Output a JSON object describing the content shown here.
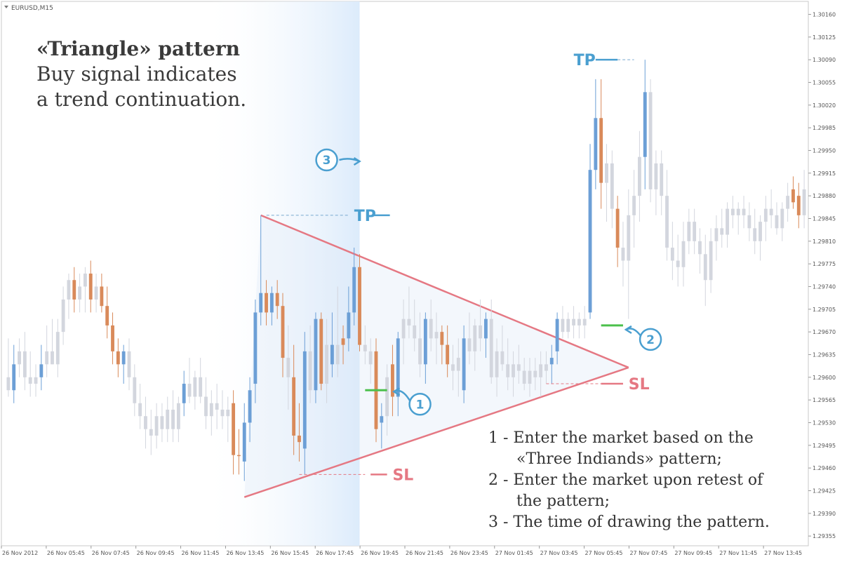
{
  "window": {
    "title": "EURUSD,M15"
  },
  "heading": {
    "title": "«Triangle» pattern",
    "line1": "Buy signal indicates",
    "line2": "a trend continuation."
  },
  "notes": [
    {
      "line": "1 - Enter the market based on the",
      "cont": "«Three Indiands» pattern;"
    },
    {
      "line": "2 - Enter the market upon retest of",
      "cont": "the pattern;"
    },
    {
      "line": "3 - The time of drawing the pattern.",
      "cont": ""
    }
  ],
  "annotations": {
    "tp_label": "TP",
    "sl_label": "SL",
    "marker1": "1",
    "marker2": "2",
    "marker3": "3",
    "tp1_price": 1.2985,
    "sl1_price": 1.2945,
    "tp2_price": 1.3009,
    "sl2_price": 1.2959,
    "entry1_price": 1.2958,
    "entry2_price": 1.2968
  },
  "colors": {
    "bull": "#6c9fd6",
    "bear": "#d98a5a",
    "neutral": "#d3d6de",
    "triangle": "#e57883",
    "annotation_blue": "#4a9fd0",
    "entry_green": "#4cc04c",
    "highlight": "#e3eefb"
  },
  "chart_data": {
    "type": "candlestick",
    "symbol": "EURUSD",
    "timeframe": "M15",
    "y_range": [
      1.2934,
      1.3018
    ],
    "y_ticks": [
      "1.30160",
      "1.30125",
      "1.30090",
      "1.30055",
      "1.30020",
      "1.29985",
      "1.29950",
      "1.29915",
      "1.29880",
      "1.29845",
      "1.29810",
      "1.29775",
      "1.29740",
      "1.29705",
      "1.29670",
      "1.29635",
      "1.29600",
      "1.29565",
      "1.29530",
      "1.29495",
      "1.29460",
      "1.29425",
      "1.29390",
      "1.29355"
    ],
    "x_ticks": [
      "26 Nov 2012",
      "26 Nov 05:45",
      "26 Nov 07:45",
      "26 Nov 09:45",
      "26 Nov 11:45",
      "26 Nov 13:45",
      "26 Nov 15:45",
      "26 Nov 17:45",
      "26 Nov 19:45",
      "26 Nov 21:45",
      "26 Nov 23:45",
      "27 Nov 01:45",
      "27 Nov 03:45",
      "27 Nov 05:45",
      "27 Nov 07:45",
      "27 Nov 09:45",
      "27 Nov 11:45",
      "27 Nov 13:45"
    ],
    "triangle": {
      "upper_start": {
        "bar": 46,
        "price": 1.2985
      },
      "lower_start": {
        "bar": 43,
        "price": 1.29415
      },
      "apex": {
        "bar": 113,
        "price": 1.29615
      }
    },
    "highlight_bars": [
      35,
      64
    ],
    "candles": [
      {
        "o": 1.296,
        "h": 1.2966,
        "l": 1.2957,
        "c": 1.2958,
        "k": "n"
      },
      {
        "o": 1.2958,
        "h": 1.2965,
        "l": 1.2956,
        "c": 1.2962,
        "k": "u"
      },
      {
        "o": 1.2962,
        "h": 1.2966,
        "l": 1.296,
        "c": 1.2964,
        "k": "n"
      },
      {
        "o": 1.2964,
        "h": 1.2967,
        "l": 1.2958,
        "c": 1.296,
        "k": "n"
      },
      {
        "o": 1.296,
        "h": 1.2964,
        "l": 1.2957,
        "c": 1.2959,
        "k": "n"
      },
      {
        "o": 1.2959,
        "h": 1.2962,
        "l": 1.2957,
        "c": 1.296,
        "k": "n"
      },
      {
        "o": 1.296,
        "h": 1.2965,
        "l": 1.2958,
        "c": 1.2962,
        "k": "u"
      },
      {
        "o": 1.2962,
        "h": 1.2968,
        "l": 1.296,
        "c": 1.2964,
        "k": "n"
      },
      {
        "o": 1.2964,
        "h": 1.2969,
        "l": 1.2962,
        "c": 1.2962,
        "k": "n"
      },
      {
        "o": 1.2962,
        "h": 1.2969,
        "l": 1.296,
        "c": 1.2967,
        "k": "n"
      },
      {
        "o": 1.2967,
        "h": 1.2974,
        "l": 1.2965,
        "c": 1.2972,
        "k": "n"
      },
      {
        "o": 1.2972,
        "h": 1.2976,
        "l": 1.2969,
        "c": 1.2975,
        "k": "n"
      },
      {
        "o": 1.2975,
        "h": 1.2977,
        "l": 1.297,
        "c": 1.2972,
        "k": "d"
      },
      {
        "o": 1.2972,
        "h": 1.2976,
        "l": 1.297,
        "c": 1.2974,
        "k": "n"
      },
      {
        "o": 1.2974,
        "h": 1.2977,
        "l": 1.297,
        "c": 1.2976,
        "k": "n"
      },
      {
        "o": 1.2976,
        "h": 1.2978,
        "l": 1.297,
        "c": 1.2972,
        "k": "d"
      },
      {
        "o": 1.2972,
        "h": 1.2976,
        "l": 1.297,
        "c": 1.2974,
        "k": "n"
      },
      {
        "o": 1.2974,
        "h": 1.2976,
        "l": 1.297,
        "c": 1.2971,
        "k": "d"
      },
      {
        "o": 1.2971,
        "h": 1.2974,
        "l": 1.2966,
        "c": 1.2968,
        "k": "d"
      },
      {
        "o": 1.2968,
        "h": 1.297,
        "l": 1.2962,
        "c": 1.2964,
        "k": "d"
      },
      {
        "o": 1.2964,
        "h": 1.2966,
        "l": 1.296,
        "c": 1.2962,
        "k": "d"
      },
      {
        "o": 1.2962,
        "h": 1.2965,
        "l": 1.2959,
        "c": 1.2964,
        "k": "u"
      },
      {
        "o": 1.2964,
        "h": 1.2966,
        "l": 1.2958,
        "c": 1.296,
        "k": "n"
      },
      {
        "o": 1.296,
        "h": 1.2962,
        "l": 1.2954,
        "c": 1.2956,
        "k": "n"
      },
      {
        "o": 1.2956,
        "h": 1.2959,
        "l": 1.2952,
        "c": 1.2954,
        "k": "n"
      },
      {
        "o": 1.2954,
        "h": 1.2957,
        "l": 1.2949,
        "c": 1.2952,
        "k": "n"
      },
      {
        "o": 1.2952,
        "h": 1.2955,
        "l": 1.2948,
        "c": 1.2951,
        "k": "n"
      },
      {
        "o": 1.2951,
        "h": 1.2956,
        "l": 1.2949,
        "c": 1.2954,
        "k": "n"
      },
      {
        "o": 1.2954,
        "h": 1.2956,
        "l": 1.295,
        "c": 1.2952,
        "k": "n"
      },
      {
        "o": 1.2952,
        "h": 1.2957,
        "l": 1.295,
        "c": 1.2955,
        "k": "n"
      },
      {
        "o": 1.2955,
        "h": 1.2958,
        "l": 1.295,
        "c": 1.2952,
        "k": "n"
      },
      {
        "o": 1.2952,
        "h": 1.2957,
        "l": 1.295,
        "c": 1.2956,
        "k": "n"
      },
      {
        "o": 1.2956,
        "h": 1.2961,
        "l": 1.2954,
        "c": 1.2959,
        "k": "u"
      },
      {
        "o": 1.2959,
        "h": 1.2963,
        "l": 1.2956,
        "c": 1.2957,
        "k": "n"
      },
      {
        "o": 1.2957,
        "h": 1.2961,
        "l": 1.2955,
        "c": 1.296,
        "k": "n"
      },
      {
        "o": 1.296,
        "h": 1.2963,
        "l": 1.2956,
        "c": 1.2957,
        "k": "n"
      },
      {
        "o": 1.2957,
        "h": 1.296,
        "l": 1.2952,
        "c": 1.2954,
        "k": "n"
      },
      {
        "o": 1.2954,
        "h": 1.2958,
        "l": 1.2951,
        "c": 1.2956,
        "k": "n"
      },
      {
        "o": 1.2956,
        "h": 1.2959,
        "l": 1.2952,
        "c": 1.2955,
        "k": "n"
      },
      {
        "o": 1.2955,
        "h": 1.2958,
        "l": 1.2952,
        "c": 1.2954,
        "k": "n"
      },
      {
        "o": 1.2954,
        "h": 1.2957,
        "l": 1.295,
        "c": 1.2955,
        "k": "n"
      },
      {
        "o": 1.2956,
        "h": 1.2958,
        "l": 1.2945,
        "c": 1.2948,
        "k": "d"
      },
      {
        "o": 1.2948,
        "h": 1.2952,
        "l": 1.2945,
        "c": 1.2948,
        "k": "d"
      },
      {
        "o": 1.2947,
        "h": 1.2956,
        "l": 1.2944,
        "c": 1.2953,
        "k": "u"
      },
      {
        "o": 1.2953,
        "h": 1.296,
        "l": 1.295,
        "c": 1.2958,
        "k": "u"
      },
      {
        "o": 1.2959,
        "h": 1.2972,
        "l": 1.2956,
        "c": 1.297,
        "k": "u"
      },
      {
        "o": 1.297,
        "h": 1.2985,
        "l": 1.2968,
        "c": 1.2973,
        "k": "u"
      },
      {
        "o": 1.2973,
        "h": 1.2975,
        "l": 1.2968,
        "c": 1.297,
        "k": "d"
      },
      {
        "o": 1.297,
        "h": 1.2974,
        "l": 1.2968,
        "c": 1.2973,
        "k": "u"
      },
      {
        "o": 1.2973,
        "h": 1.2975,
        "l": 1.2969,
        "c": 1.2971,
        "k": "d"
      },
      {
        "o": 1.2971,
        "h": 1.2973,
        "l": 1.296,
        "c": 1.2963,
        "k": "d"
      },
      {
        "o": 1.2963,
        "h": 1.2968,
        "l": 1.2955,
        "c": 1.296,
        "k": "n"
      },
      {
        "o": 1.296,
        "h": 1.2965,
        "l": 1.2948,
        "c": 1.2951,
        "k": "d"
      },
      {
        "o": 1.2951,
        "h": 1.2956,
        "l": 1.2947,
        "c": 1.295,
        "k": "d"
      },
      {
        "o": 1.2949,
        "h": 1.2967,
        "l": 1.2945,
        "c": 1.2964,
        "k": "u"
      },
      {
        "o": 1.2964,
        "h": 1.2968,
        "l": 1.2956,
        "c": 1.2958,
        "k": "n"
      },
      {
        "o": 1.2958,
        "h": 1.297,
        "l": 1.2956,
        "c": 1.2969,
        "k": "u"
      },
      {
        "o": 1.2969,
        "h": 1.297,
        "l": 1.2958,
        "c": 1.2959,
        "k": "d"
      },
      {
        "o": 1.2959,
        "h": 1.2969,
        "l": 1.2956,
        "c": 1.2965,
        "k": "n"
      },
      {
        "o": 1.2965,
        "h": 1.297,
        "l": 1.296,
        "c": 1.2962,
        "k": "u"
      },
      {
        "o": 1.2962,
        "h": 1.2974,
        "l": 1.296,
        "c": 1.2965,
        "k": "n"
      },
      {
        "o": 1.2965,
        "h": 1.2968,
        "l": 1.2962,
        "c": 1.2966,
        "k": "d"
      },
      {
        "o": 1.2966,
        "h": 1.2974,
        "l": 1.2964,
        "c": 1.297,
        "k": "u"
      },
      {
        "o": 1.297,
        "h": 1.298,
        "l": 1.2968,
        "c": 1.2977,
        "k": "u"
      },
      {
        "o": 1.2977,
        "h": 1.2979,
        "l": 1.2964,
        "c": 1.2965,
        "k": "d"
      },
      {
        "o": 1.2965,
        "h": 1.2968,
        "l": 1.2962,
        "c": 1.2964,
        "k": "n"
      },
      {
        "o": 1.2964,
        "h": 1.2966,
        "l": 1.2959,
        "c": 1.2962,
        "k": "n"
      },
      {
        "o": 1.2964,
        "h": 1.2966,
        "l": 1.295,
        "c": 1.2952,
        "k": "d"
      },
      {
        "o": 1.2953,
        "h": 1.2956,
        "l": 1.2949,
        "c": 1.2954,
        "k": "u"
      },
      {
        "o": 1.2954,
        "h": 1.2962,
        "l": 1.2951,
        "c": 1.296,
        "k": "n"
      },
      {
        "o": 1.2962,
        "h": 1.2965,
        "l": 1.2954,
        "c": 1.2957,
        "k": "d"
      },
      {
        "o": 1.2957,
        "h": 1.2967,
        "l": 1.2954,
        "c": 1.2966,
        "k": "u"
      },
      {
        "o": 1.2966,
        "h": 1.2972,
        "l": 1.2962,
        "c": 1.2969,
        "k": "n"
      },
      {
        "o": 1.2969,
        "h": 1.2974,
        "l": 1.2966,
        "c": 1.2968,
        "k": "n"
      },
      {
        "o": 1.2968,
        "h": 1.2972,
        "l": 1.2964,
        "c": 1.2966,
        "k": "n"
      },
      {
        "o": 1.2966,
        "h": 1.297,
        "l": 1.296,
        "c": 1.2962,
        "k": "n"
      },
      {
        "o": 1.2962,
        "h": 1.297,
        "l": 1.2959,
        "c": 1.2969,
        "k": "u"
      },
      {
        "o": 1.2969,
        "h": 1.2972,
        "l": 1.2964,
        "c": 1.2966,
        "k": "n"
      },
      {
        "o": 1.2966,
        "h": 1.297,
        "l": 1.2962,
        "c": 1.2967,
        "k": "n"
      },
      {
        "o": 1.2967,
        "h": 1.2968,
        "l": 1.2962,
        "c": 1.2965,
        "k": "d"
      },
      {
        "o": 1.2965,
        "h": 1.2968,
        "l": 1.296,
        "c": 1.2962,
        "k": "d"
      },
      {
        "o": 1.2962,
        "h": 1.2965,
        "l": 1.2958,
        "c": 1.2961,
        "k": "n"
      },
      {
        "o": 1.2961,
        "h": 1.2966,
        "l": 1.2957,
        "c": 1.2963,
        "k": "n"
      },
      {
        "o": 1.2958,
        "h": 1.2968,
        "l": 1.2956,
        "c": 1.2966,
        "k": "u"
      },
      {
        "o": 1.2966,
        "h": 1.297,
        "l": 1.2962,
        "c": 1.2964,
        "k": "n"
      },
      {
        "o": 1.2964,
        "h": 1.2969,
        "l": 1.2961,
        "c": 1.2968,
        "k": "n"
      },
      {
        "o": 1.2968,
        "h": 1.2972,
        "l": 1.2964,
        "c": 1.2966,
        "k": "n"
      },
      {
        "o": 1.2966,
        "h": 1.297,
        "l": 1.2963,
        "c": 1.2969,
        "k": "u"
      },
      {
        "o": 1.2969,
        "h": 1.2972,
        "l": 1.2959,
        "c": 1.296,
        "k": "n"
      },
      {
        "o": 1.296,
        "h": 1.2966,
        "l": 1.2957,
        "c": 1.2964,
        "k": "n"
      },
      {
        "o": 1.2964,
        "h": 1.2968,
        "l": 1.2961,
        "c": 1.2962,
        "k": "n"
      },
      {
        "o": 1.2962,
        "h": 1.2966,
        "l": 1.2958,
        "c": 1.296,
        "k": "n"
      },
      {
        "o": 1.296,
        "h": 1.2964,
        "l": 1.2957,
        "c": 1.2962,
        "k": "n"
      },
      {
        "o": 1.2962,
        "h": 1.2965,
        "l": 1.2959,
        "c": 1.2961,
        "k": "n"
      },
      {
        "o": 1.2961,
        "h": 1.2963,
        "l": 1.2958,
        "c": 1.2959,
        "k": "n"
      },
      {
        "o": 1.2959,
        "h": 1.2963,
        "l": 1.2957,
        "c": 1.2961,
        "k": "n"
      },
      {
        "o": 1.2961,
        "h": 1.2963,
        "l": 1.2958,
        "c": 1.296,
        "k": "n"
      },
      {
        "o": 1.296,
        "h": 1.2964,
        "l": 1.2957,
        "c": 1.2962,
        "k": "n"
      },
      {
        "o": 1.2962,
        "h": 1.2964,
        "l": 1.2959,
        "c": 1.2961,
        "k": "n"
      },
      {
        "o": 1.2962,
        "h": 1.2965,
        "l": 1.2959,
        "c": 1.2963,
        "k": "u"
      },
      {
        "o": 1.2964,
        "h": 1.297,
        "l": 1.2962,
        "c": 1.2969,
        "k": "u"
      },
      {
        "o": 1.2969,
        "h": 1.2971,
        "l": 1.2966,
        "c": 1.2967,
        "k": "n"
      },
      {
        "o": 1.2967,
        "h": 1.297,
        "l": 1.2966,
        "c": 1.2969,
        "k": "n"
      },
      {
        "o": 1.2969,
        "h": 1.2971,
        "l": 1.2966,
        "c": 1.2968,
        "k": "n"
      },
      {
        "o": 1.2968,
        "h": 1.297,
        "l": 1.2966,
        "c": 1.2969,
        "k": "n"
      },
      {
        "o": 1.2969,
        "h": 1.2971,
        "l": 1.2966,
        "c": 1.2968,
        "k": "n"
      },
      {
        "o": 1.297,
        "h": 1.2996,
        "l": 1.2969,
        "c": 1.2992,
        "k": "u"
      },
      {
        "o": 1.2992,
        "h": 1.3006,
        "l": 1.2989,
        "c": 1.3,
        "k": "u"
      },
      {
        "o": 1.3,
        "h": 1.3006,
        "l": 1.2986,
        "c": 1.299,
        "k": "d"
      },
      {
        "o": 1.299,
        "h": 1.2996,
        "l": 1.2984,
        "c": 1.2993,
        "k": "n"
      },
      {
        "o": 1.2993,
        "h": 1.2995,
        "l": 1.2983,
        "c": 1.2986,
        "k": "n"
      },
      {
        "o": 1.2986,
        "h": 1.2988,
        "l": 1.2977,
        "c": 1.298,
        "k": "d"
      },
      {
        "o": 1.298,
        "h": 1.2984,
        "l": 1.2974,
        "c": 1.2978,
        "k": "n"
      },
      {
        "o": 1.2978,
        "h": 1.2989,
        "l": 1.2969,
        "c": 1.2985,
        "k": "n"
      },
      {
        "o": 1.2985,
        "h": 1.2992,
        "l": 1.298,
        "c": 1.2988,
        "k": "n"
      },
      {
        "o": 1.2988,
        "h": 1.2998,
        "l": 1.2984,
        "c": 1.2994,
        "k": "n"
      },
      {
        "o": 1.2994,
        "h": 1.3009,
        "l": 1.2989,
        "c": 1.3004,
        "k": "u"
      },
      {
        "o": 1.3004,
        "h": 1.3006,
        "l": 1.2987,
        "c": 1.2989,
        "k": "n"
      },
      {
        "o": 1.2989,
        "h": 1.2995,
        "l": 1.2985,
        "c": 1.2993,
        "k": "n"
      },
      {
        "o": 1.2993,
        "h": 1.2995,
        "l": 1.2985,
        "c": 1.2988,
        "k": "n"
      },
      {
        "o": 1.2988,
        "h": 1.2992,
        "l": 1.2978,
        "c": 1.298,
        "k": "n"
      },
      {
        "o": 1.298,
        "h": 1.2984,
        "l": 1.2975,
        "c": 1.2978,
        "k": "n"
      },
      {
        "o": 1.2978,
        "h": 1.2982,
        "l": 1.2974,
        "c": 1.2977,
        "k": "n"
      },
      {
        "o": 1.2977,
        "h": 1.2984,
        "l": 1.2974,
        "c": 1.2981,
        "k": "n"
      },
      {
        "o": 1.2981,
        "h": 1.2986,
        "l": 1.2979,
        "c": 1.2984,
        "k": "n"
      },
      {
        "o": 1.2984,
        "h": 1.2986,
        "l": 1.2979,
        "c": 1.2981,
        "k": "n"
      },
      {
        "o": 1.2981,
        "h": 1.2983,
        "l": 1.2976,
        "c": 1.2979,
        "k": "n"
      },
      {
        "o": 1.2979,
        "h": 1.2982,
        "l": 1.2971,
        "c": 1.2975,
        "k": "n"
      },
      {
        "o": 1.2975,
        "h": 1.2983,
        "l": 1.2973,
        "c": 1.2981,
        "k": "n"
      },
      {
        "o": 1.2981,
        "h": 1.2985,
        "l": 1.2978,
        "c": 1.2983,
        "k": "n"
      },
      {
        "o": 1.2983,
        "h": 1.2986,
        "l": 1.298,
        "c": 1.2982,
        "k": "n"
      },
      {
        "o": 1.2982,
        "h": 1.2987,
        "l": 1.298,
        "c": 1.2986,
        "k": "n"
      },
      {
        "o": 1.2986,
        "h": 1.2988,
        "l": 1.2983,
        "c": 1.2985,
        "k": "n"
      },
      {
        "o": 1.2985,
        "h": 1.2987,
        "l": 1.2982,
        "c": 1.2986,
        "k": "n"
      },
      {
        "o": 1.2986,
        "h": 1.2988,
        "l": 1.2983,
        "c": 1.2985,
        "k": "n"
      },
      {
        "o": 1.2985,
        "h": 1.2987,
        "l": 1.2981,
        "c": 1.2983,
        "k": "n"
      },
      {
        "o": 1.2983,
        "h": 1.2986,
        "l": 1.2979,
        "c": 1.2981,
        "k": "n"
      },
      {
        "o": 1.2981,
        "h": 1.2985,
        "l": 1.2978,
        "c": 1.2984,
        "k": "n"
      },
      {
        "o": 1.2984,
        "h": 1.2988,
        "l": 1.2981,
        "c": 1.2986,
        "k": "n"
      },
      {
        "o": 1.2986,
        "h": 1.2989,
        "l": 1.2983,
        "c": 1.2985,
        "k": "n"
      },
      {
        "o": 1.2985,
        "h": 1.2987,
        "l": 1.2982,
        "c": 1.2983,
        "k": "n"
      },
      {
        "o": 1.2983,
        "h": 1.2987,
        "l": 1.2981,
        "c": 1.2986,
        "k": "n"
      },
      {
        "o": 1.2986,
        "h": 1.299,
        "l": 1.2984,
        "c": 1.2988,
        "k": "n"
      },
      {
        "o": 1.2989,
        "h": 1.2991,
        "l": 1.2986,
        "c": 1.2987,
        "k": "d"
      },
      {
        "o": 1.2988,
        "h": 1.299,
        "l": 1.2983,
        "c": 1.2985,
        "k": "d"
      },
      {
        "o": 1.2985,
        "h": 1.2992,
        "l": 1.2983,
        "c": 1.2989,
        "k": "n"
      }
    ]
  }
}
